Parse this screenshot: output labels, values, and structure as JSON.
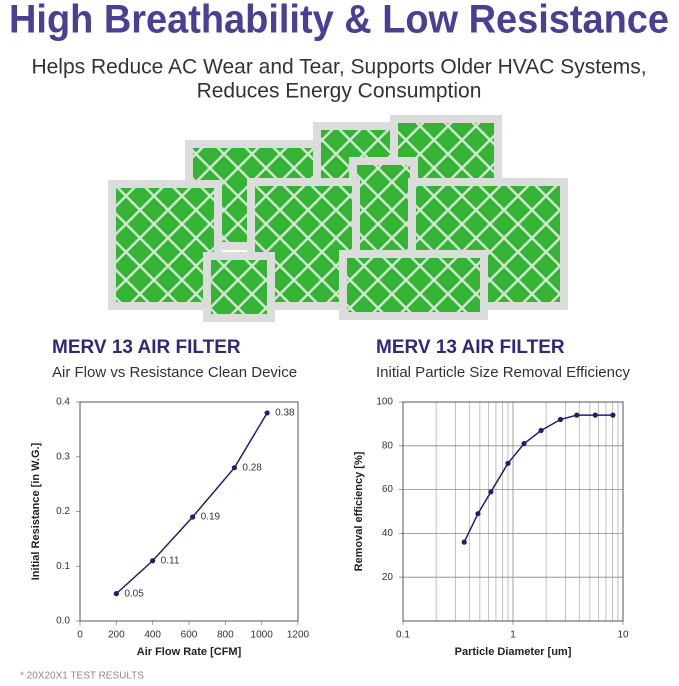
{
  "header": {
    "title": "High Breathability & Low Resistance",
    "subtitle": [
      "Helps Reduce AC Wear and Tear, Supports Older HVAC Systems,",
      "Reduces Energy Consumption"
    ]
  },
  "chart_data": [
    {
      "type": "line",
      "title": "MERV 13 AIR FILTER",
      "subtitle": "Air Flow vs Resistance Clean Device",
      "x_label": "Air Flow Rate [CFM]",
      "y_label": "Initial Resistance [in W.G.]",
      "x": [
        200,
        400,
        620,
        850,
        1030
      ],
      "values": [
        0.05,
        0.11,
        0.19,
        0.28,
        0.38
      ],
      "color": "#1f1f6e",
      "xlim": [
        0,
        1200
      ],
      "xticks": [
        0,
        200,
        400,
        600,
        800,
        1000,
        1200
      ],
      "ylim": [
        0,
        0.4
      ],
      "yticks": [
        {
          "value": 0,
          "label": "0.0"
        },
        0.1,
        0.2,
        0.3,
        0.4
      ],
      "grid": false,
      "data_labels": true,
      "log_x": false
    },
    {
      "type": "line",
      "title": "MERV 13 AIR FILTER",
      "subtitle": "Initial Particle Size Removal Efficiency",
      "x_label": "Particle Diameter [um]",
      "y_label": "Removal efficiency [%]",
      "x": [
        0.36,
        0.48,
        0.63,
        0.9,
        1.26,
        1.8,
        2.7,
        3.8,
        5.6,
        8.1
      ],
      "values": [
        36,
        49,
        59,
        72,
        81,
        87,
        92,
        94,
        94,
        94
      ],
      "color": "#1f1f6e",
      "xlim": [
        0.1,
        10
      ],
      "xticks": [
        0.1,
        1,
        10
      ],
      "ylim": [
        0,
        100
      ],
      "yticks": [
        20,
        40,
        60,
        80,
        100
      ],
      "grid": true,
      "data_labels": false,
      "log_x": true
    }
  ],
  "footnote": "* 20X20X1 TEST RESULTS"
}
